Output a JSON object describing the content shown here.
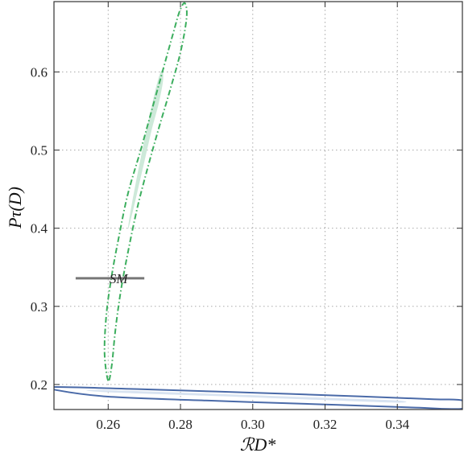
{
  "chart_data": {
    "type": "contour",
    "xlabel": "ℛD*",
    "ylabel": "Pτ(D)",
    "xlim": [
      0.245,
      0.358
    ],
    "ylim": [
      0.168,
      0.69
    ],
    "x_ticks": [
      {
        "value": 0.26,
        "label": "0.26"
      },
      {
        "value": 0.28,
        "label": "0.28"
      },
      {
        "value": 0.3,
        "label": "0.30"
      },
      {
        "value": 0.32,
        "label": "0.32"
      },
      {
        "value": 0.34,
        "label": "0.34"
      }
    ],
    "y_ticks": [
      {
        "value": 0.2,
        "label": "0.2"
      },
      {
        "value": 0.3,
        "label": "0.3"
      },
      {
        "value": 0.4,
        "label": "0.4"
      },
      {
        "value": 0.5,
        "label": "0.5"
      },
      {
        "value": 0.6,
        "label": "0.6"
      }
    ],
    "grid": true,
    "colors": {
      "green_fill": "#cde9d9",
      "green_line": "#3cae5e",
      "blue_fill": "#d8e3f1",
      "blue_line": "#4a6aa8",
      "sm_line": "#777777",
      "frame": "#333333",
      "grid": "#aaaaaa"
    },
    "regions": [
      {
        "id": "green-inner",
        "style": "filled",
        "points": [
          [
            0.2655,
            0.4
          ],
          [
            0.2665,
            0.43
          ],
          [
            0.269,
            0.49
          ],
          [
            0.2715,
            0.545
          ],
          [
            0.2735,
            0.585
          ],
          [
            0.2748,
            0.602
          ],
          [
            0.2752,
            0.59
          ],
          [
            0.274,
            0.56
          ],
          [
            0.272,
            0.525
          ],
          [
            0.27,
            0.485
          ],
          [
            0.268,
            0.445
          ],
          [
            0.2662,
            0.41
          ]
        ]
      },
      {
        "id": "green-outer",
        "style": "dashdot",
        "points": [
          [
            0.26,
            0.205
          ],
          [
            0.259,
            0.24
          ],
          [
            0.2595,
            0.29
          ],
          [
            0.261,
            0.34
          ],
          [
            0.263,
            0.39
          ],
          [
            0.2655,
            0.445
          ],
          [
            0.269,
            0.5
          ],
          [
            0.272,
            0.55
          ],
          [
            0.275,
            0.6
          ],
          [
            0.278,
            0.65
          ],
          [
            0.2798,
            0.678
          ],
          [
            0.2812,
            0.688
          ],
          [
            0.2817,
            0.67
          ],
          [
            0.28,
            0.625
          ],
          [
            0.277,
            0.575
          ],
          [
            0.2735,
            0.52
          ],
          [
            0.2705,
            0.47
          ],
          [
            0.268,
            0.425
          ],
          [
            0.2655,
            0.37
          ],
          [
            0.2635,
            0.32
          ],
          [
            0.262,
            0.27
          ],
          [
            0.261,
            0.225
          ]
        ]
      },
      {
        "id": "blue-inner",
        "style": "filled",
        "points": [
          [
            0.258,
            0.193
          ],
          [
            0.29,
            0.188
          ],
          [
            0.32,
            0.183
          ],
          [
            0.34,
            0.1795
          ],
          [
            0.34,
            0.1768
          ],
          [
            0.32,
            0.18
          ],
          [
            0.29,
            0.1852
          ],
          [
            0.258,
            0.1905
          ]
        ]
      },
      {
        "id": "blue-outer",
        "style": "solid",
        "points": [
          [
            0.2455,
            0.1968
          ],
          [
            0.27,
            0.1938
          ],
          [
            0.3,
            0.1895
          ],
          [
            0.33,
            0.1848
          ],
          [
            0.35,
            0.1812
          ],
          [
            0.358,
            0.1795
          ],
          [
            0.358,
            0.169
          ],
          [
            0.345,
            0.1705
          ],
          [
            0.32,
            0.1745
          ],
          [
            0.29,
            0.179
          ],
          [
            0.26,
            0.1845
          ],
          [
            0.2455,
            0.193
          ]
        ]
      }
    ],
    "sm_point": {
      "label": "SM",
      "x_range": [
        0.251,
        0.27
      ],
      "y": 0.336
    }
  }
}
